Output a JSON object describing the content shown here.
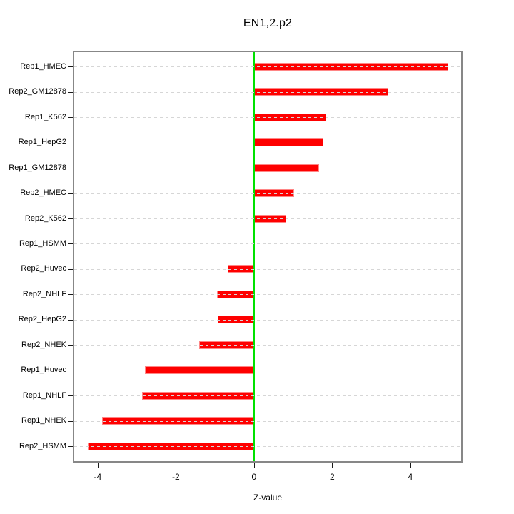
{
  "chart_data": {
    "type": "bar",
    "orientation": "horizontal",
    "title": "EN1,2.p2",
    "xlabel": "Z-value",
    "ylabel": "",
    "categories": [
      "Rep1_HMEC",
      "Rep2_GM12878",
      "Rep1_K562",
      "Rep1_HepG2",
      "Rep1_GM12878",
      "Rep2_HMEC",
      "Rep2_K562",
      "Rep1_HSMM",
      "Rep2_Huvec",
      "Rep2_NHLF",
      "Rep2_HepG2",
      "Rep2_NHEK",
      "Rep1_Huvec",
      "Rep1_NHLF",
      "Rep1_NHEK",
      "Rep2_HSMM"
    ],
    "values": [
      4.98,
      3.44,
      1.85,
      1.78,
      1.67,
      1.03,
      0.83,
      -0.03,
      -0.67,
      -0.94,
      -0.93,
      -1.41,
      -2.79,
      -2.87,
      -3.88,
      -4.25
    ],
    "xticks": [
      -4,
      -2,
      0,
      2,
      4
    ],
    "xtick_labels": [
      "-4",
      "-2",
      "0",
      "2",
      "4"
    ],
    "xlim": [
      -4.6,
      5.3
    ],
    "grid": "dashed light-gray horizontal line at each bar row",
    "zero_reference_line": true,
    "legend": "none",
    "colors": {
      "bar_fill": "#fe0000",
      "bar_border": "#ff8585",
      "zero_line": "#00e100",
      "grid_line": "#d6d6d6",
      "plot_border": "#878787",
      "text": "#000000",
      "background": "#ffffff"
    }
  }
}
